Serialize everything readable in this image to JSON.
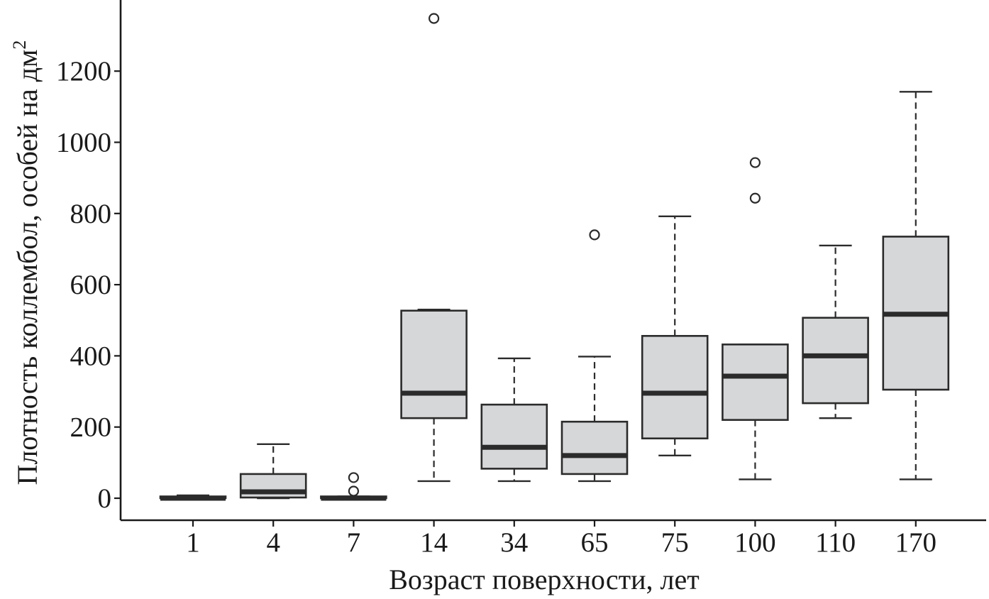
{
  "chart_data": {
    "type": "boxplot",
    "xlabel": "Возраст поверхности, лет",
    "ylabel": "Плотность коллембол, особей на дм",
    "ylabel_superscript": "2",
    "ylim": [
      -60,
      1390
    ],
    "yticks": [
      0,
      200,
      400,
      600,
      800,
      1000,
      1200
    ],
    "grid": false,
    "categories": [
      "1",
      "4",
      "7",
      "14",
      "34",
      "65",
      "75",
      "100",
      "110",
      "170"
    ],
    "boxes": [
      {
        "category": "1",
        "min": 0,
        "q1": 0,
        "median": 0,
        "q3": 5,
        "max": 8,
        "outliers": []
      },
      {
        "category": "4",
        "min": 0,
        "q1": 2,
        "median": 18,
        "q3": 68,
        "max": 152,
        "outliers": []
      },
      {
        "category": "7",
        "min": 0,
        "q1": 0,
        "median": 0,
        "q3": 5,
        "max": 5,
        "outliers": [
          20,
          58
        ]
      },
      {
        "category": "14",
        "min": 48,
        "q1": 225,
        "median": 295,
        "q3": 527,
        "max": 530,
        "outliers": [
          1348
        ]
      },
      {
        "category": "34",
        "min": 48,
        "q1": 83,
        "median": 143,
        "q3": 263,
        "max": 393,
        "outliers": []
      },
      {
        "category": "65",
        "min": 48,
        "q1": 68,
        "median": 120,
        "q3": 215,
        "max": 398,
        "outliers": [
          740
        ]
      },
      {
        "category": "75",
        "min": 120,
        "q1": 168,
        "median": 295,
        "q3": 456,
        "max": 792,
        "outliers": []
      },
      {
        "category": "100",
        "min": 53,
        "q1": 220,
        "median": 343,
        "q3": 432,
        "max": 432,
        "outliers": [
          843,
          943
        ]
      },
      {
        "category": "110",
        "min": 225,
        "q1": 267,
        "median": 400,
        "q3": 507,
        "max": 710,
        "outliers": []
      },
      {
        "category": "170",
        "min": 53,
        "q1": 305,
        "median": 517,
        "q3": 735,
        "max": 1142,
        "outliers": []
      }
    ]
  },
  "colors": {
    "box_fill": "#d6d7d9",
    "stroke": "#2b2b2b",
    "text": "#1a1a1a"
  }
}
